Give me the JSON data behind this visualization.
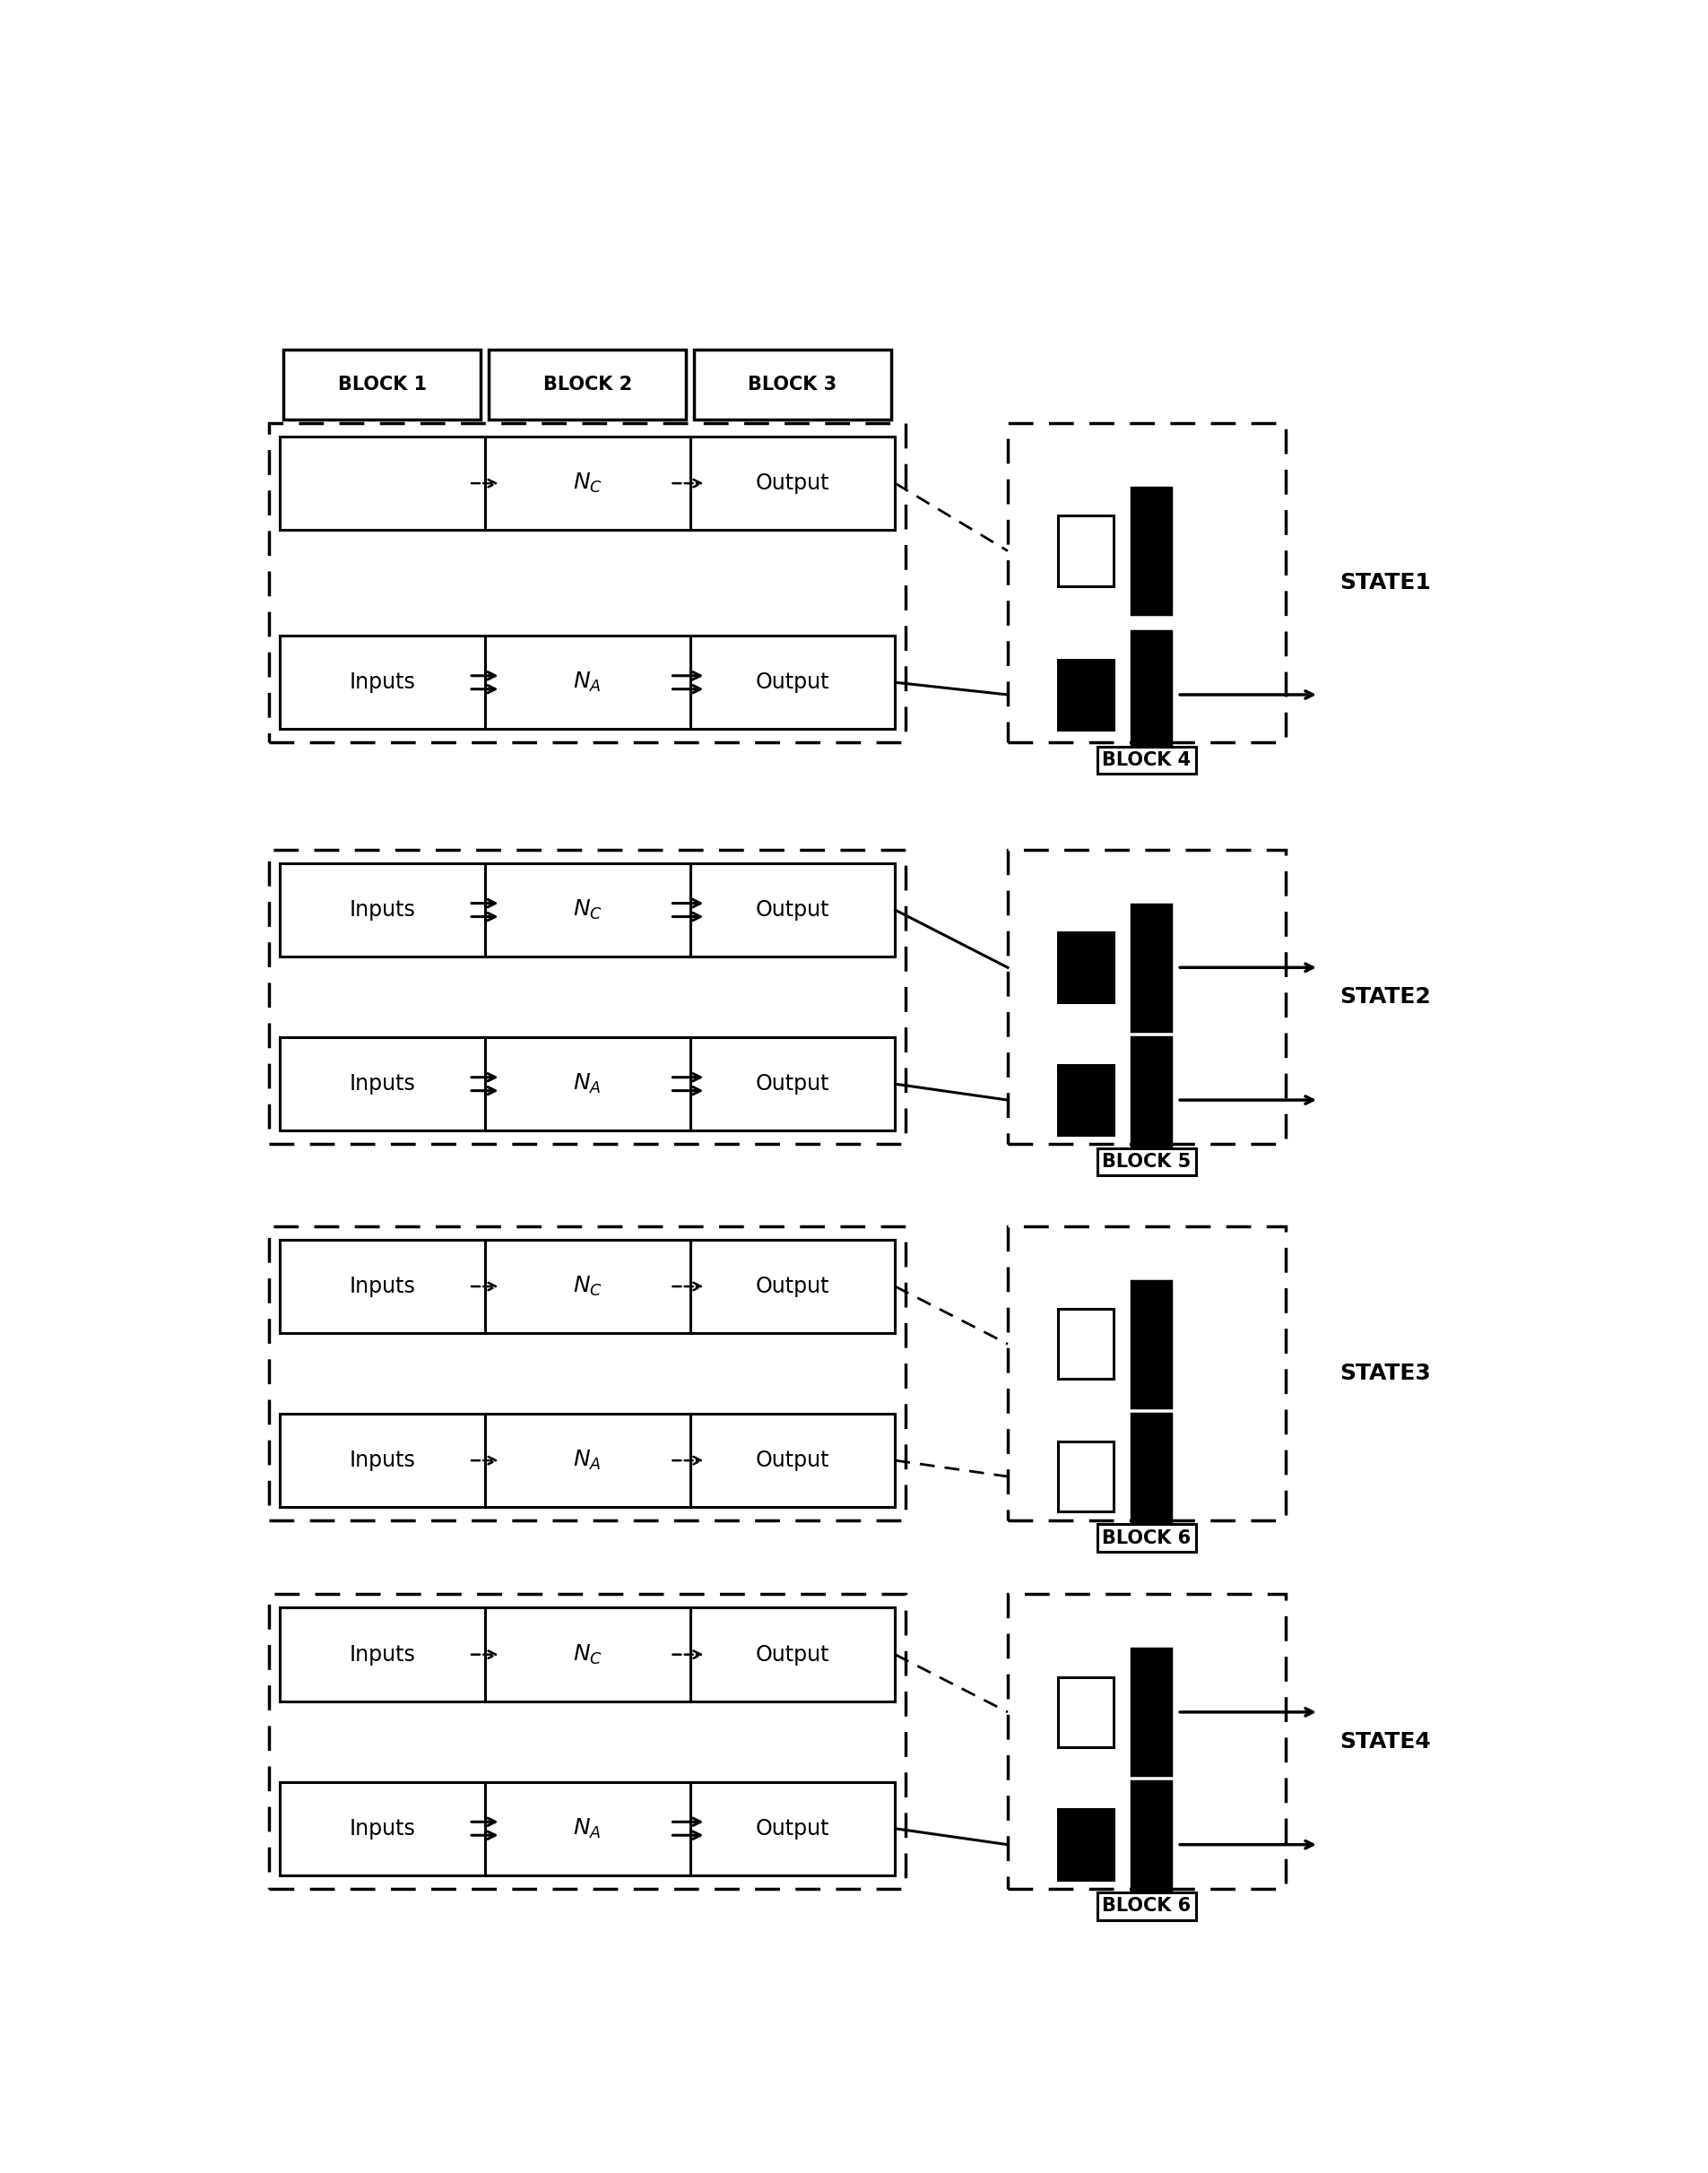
{
  "fig_width": 19.05,
  "fig_height": 24.24,
  "bg_color": "#ffffff",
  "states": [
    {
      "name": "STATE1",
      "block_labels": [
        "BLOCK 1",
        "BLOCK 2",
        "BLOCK 3"
      ],
      "row_c_has_inputs": false,
      "row_c_active": false,
      "row_a_active": true,
      "block_right_label": "BLOCK 4",
      "icon_top_filled": false,
      "icon_bottom_filled": true,
      "output_arrow_count": 1,
      "output_arrow_from_bottom": true
    },
    {
      "name": "STATE2",
      "block_labels": null,
      "row_c_has_inputs": true,
      "row_c_active": true,
      "row_a_active": true,
      "block_right_label": "BLOCK 5",
      "icon_top_filled": true,
      "icon_bottom_filled": true,
      "output_arrow_count": 2,
      "output_arrow_from_bottom": false
    },
    {
      "name": "STATE3",
      "block_labels": null,
      "row_c_has_inputs": true,
      "row_c_active": false,
      "row_a_active": false,
      "block_right_label": "BLOCK 6",
      "icon_top_filled": false,
      "icon_bottom_filled": false,
      "output_arrow_count": 0,
      "output_arrow_from_bottom": false
    },
    {
      "name": "STATE4",
      "block_labels": null,
      "row_c_has_inputs": true,
      "row_c_active": false,
      "row_a_active": true,
      "block_right_label": "BLOCK 6",
      "icon_top_filled": false,
      "icon_bottom_filled": true,
      "output_arrow_count": 2,
      "output_arrow_from_bottom": false
    }
  ]
}
